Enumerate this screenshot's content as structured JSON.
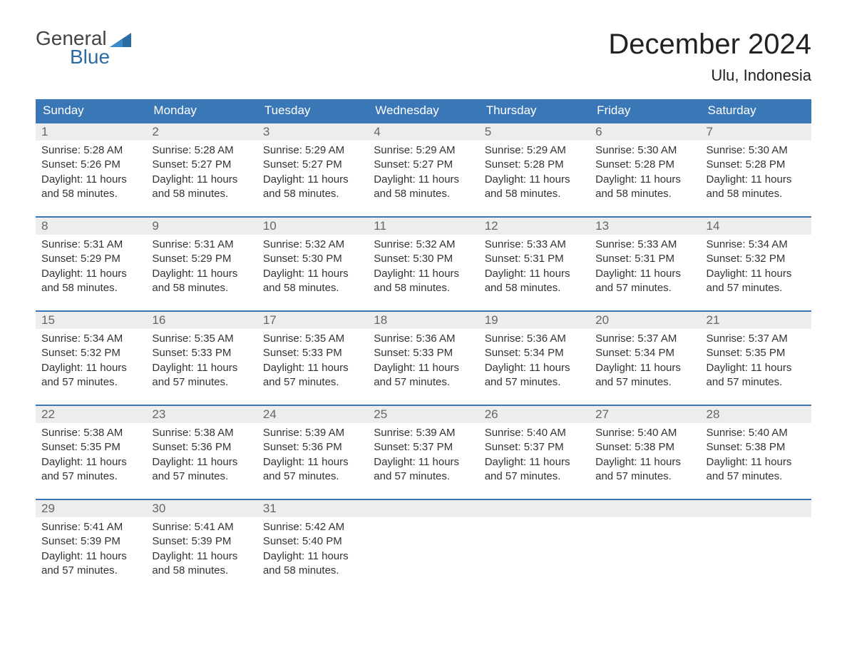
{
  "logo": {
    "text1": "General",
    "text2": "Blue",
    "icon_color": "#2b6ca3"
  },
  "title": "December 2024",
  "location": "Ulu, Indonesia",
  "colors": {
    "header_bg": "#3a77b6",
    "header_text": "#ffffff",
    "daynum_bg": "#ededed",
    "daynum_text": "#666666",
    "body_text": "#333333",
    "rule": "#3a77b6"
  },
  "day_labels": [
    "Sunday",
    "Monday",
    "Tuesday",
    "Wednesday",
    "Thursday",
    "Friday",
    "Saturday"
  ],
  "weeks": [
    [
      {
        "n": "1",
        "sunrise": "5:28 AM",
        "sunset": "5:26 PM",
        "dl1": "Daylight: 11 hours",
        "dl2": "and 58 minutes."
      },
      {
        "n": "2",
        "sunrise": "5:28 AM",
        "sunset": "5:27 PM",
        "dl1": "Daylight: 11 hours",
        "dl2": "and 58 minutes."
      },
      {
        "n": "3",
        "sunrise": "5:29 AM",
        "sunset": "5:27 PM",
        "dl1": "Daylight: 11 hours",
        "dl2": "and 58 minutes."
      },
      {
        "n": "4",
        "sunrise": "5:29 AM",
        "sunset": "5:27 PM",
        "dl1": "Daylight: 11 hours",
        "dl2": "and 58 minutes."
      },
      {
        "n": "5",
        "sunrise": "5:29 AM",
        "sunset": "5:28 PM",
        "dl1": "Daylight: 11 hours",
        "dl2": "and 58 minutes."
      },
      {
        "n": "6",
        "sunrise": "5:30 AM",
        "sunset": "5:28 PM",
        "dl1": "Daylight: 11 hours",
        "dl2": "and 58 minutes."
      },
      {
        "n": "7",
        "sunrise": "5:30 AM",
        "sunset": "5:28 PM",
        "dl1": "Daylight: 11 hours",
        "dl2": "and 58 minutes."
      }
    ],
    [
      {
        "n": "8",
        "sunrise": "5:31 AM",
        "sunset": "5:29 PM",
        "dl1": "Daylight: 11 hours",
        "dl2": "and 58 minutes."
      },
      {
        "n": "9",
        "sunrise": "5:31 AM",
        "sunset": "5:29 PM",
        "dl1": "Daylight: 11 hours",
        "dl2": "and 58 minutes."
      },
      {
        "n": "10",
        "sunrise": "5:32 AM",
        "sunset": "5:30 PM",
        "dl1": "Daylight: 11 hours",
        "dl2": "and 58 minutes."
      },
      {
        "n": "11",
        "sunrise": "5:32 AM",
        "sunset": "5:30 PM",
        "dl1": "Daylight: 11 hours",
        "dl2": "and 58 minutes."
      },
      {
        "n": "12",
        "sunrise": "5:33 AM",
        "sunset": "5:31 PM",
        "dl1": "Daylight: 11 hours",
        "dl2": "and 58 minutes."
      },
      {
        "n": "13",
        "sunrise": "5:33 AM",
        "sunset": "5:31 PM",
        "dl1": "Daylight: 11 hours",
        "dl2": "and 57 minutes."
      },
      {
        "n": "14",
        "sunrise": "5:34 AM",
        "sunset": "5:32 PM",
        "dl1": "Daylight: 11 hours",
        "dl2": "and 57 minutes."
      }
    ],
    [
      {
        "n": "15",
        "sunrise": "5:34 AM",
        "sunset": "5:32 PM",
        "dl1": "Daylight: 11 hours",
        "dl2": "and 57 minutes."
      },
      {
        "n": "16",
        "sunrise": "5:35 AM",
        "sunset": "5:33 PM",
        "dl1": "Daylight: 11 hours",
        "dl2": "and 57 minutes."
      },
      {
        "n": "17",
        "sunrise": "5:35 AM",
        "sunset": "5:33 PM",
        "dl1": "Daylight: 11 hours",
        "dl2": "and 57 minutes."
      },
      {
        "n": "18",
        "sunrise": "5:36 AM",
        "sunset": "5:33 PM",
        "dl1": "Daylight: 11 hours",
        "dl2": "and 57 minutes."
      },
      {
        "n": "19",
        "sunrise": "5:36 AM",
        "sunset": "5:34 PM",
        "dl1": "Daylight: 11 hours",
        "dl2": "and 57 minutes."
      },
      {
        "n": "20",
        "sunrise": "5:37 AM",
        "sunset": "5:34 PM",
        "dl1": "Daylight: 11 hours",
        "dl2": "and 57 minutes."
      },
      {
        "n": "21",
        "sunrise": "5:37 AM",
        "sunset": "5:35 PM",
        "dl1": "Daylight: 11 hours",
        "dl2": "and 57 minutes."
      }
    ],
    [
      {
        "n": "22",
        "sunrise": "5:38 AM",
        "sunset": "5:35 PM",
        "dl1": "Daylight: 11 hours",
        "dl2": "and 57 minutes."
      },
      {
        "n": "23",
        "sunrise": "5:38 AM",
        "sunset": "5:36 PM",
        "dl1": "Daylight: 11 hours",
        "dl2": "and 57 minutes."
      },
      {
        "n": "24",
        "sunrise": "5:39 AM",
        "sunset": "5:36 PM",
        "dl1": "Daylight: 11 hours",
        "dl2": "and 57 minutes."
      },
      {
        "n": "25",
        "sunrise": "5:39 AM",
        "sunset": "5:37 PM",
        "dl1": "Daylight: 11 hours",
        "dl2": "and 57 minutes."
      },
      {
        "n": "26",
        "sunrise": "5:40 AM",
        "sunset": "5:37 PM",
        "dl1": "Daylight: 11 hours",
        "dl2": "and 57 minutes."
      },
      {
        "n": "27",
        "sunrise": "5:40 AM",
        "sunset": "5:38 PM",
        "dl1": "Daylight: 11 hours",
        "dl2": "and 57 minutes."
      },
      {
        "n": "28",
        "sunrise": "5:40 AM",
        "sunset": "5:38 PM",
        "dl1": "Daylight: 11 hours",
        "dl2": "and 57 minutes."
      }
    ],
    [
      {
        "n": "29",
        "sunrise": "5:41 AM",
        "sunset": "5:39 PM",
        "dl1": "Daylight: 11 hours",
        "dl2": "and 57 minutes."
      },
      {
        "n": "30",
        "sunrise": "5:41 AM",
        "sunset": "5:39 PM",
        "dl1": "Daylight: 11 hours",
        "dl2": "and 58 minutes."
      },
      {
        "n": "31",
        "sunrise": "5:42 AM",
        "sunset": "5:40 PM",
        "dl1": "Daylight: 11 hours",
        "dl2": "and 58 minutes."
      },
      null,
      null,
      null,
      null
    ]
  ],
  "labels": {
    "sunrise": "Sunrise: ",
    "sunset": "Sunset: "
  }
}
